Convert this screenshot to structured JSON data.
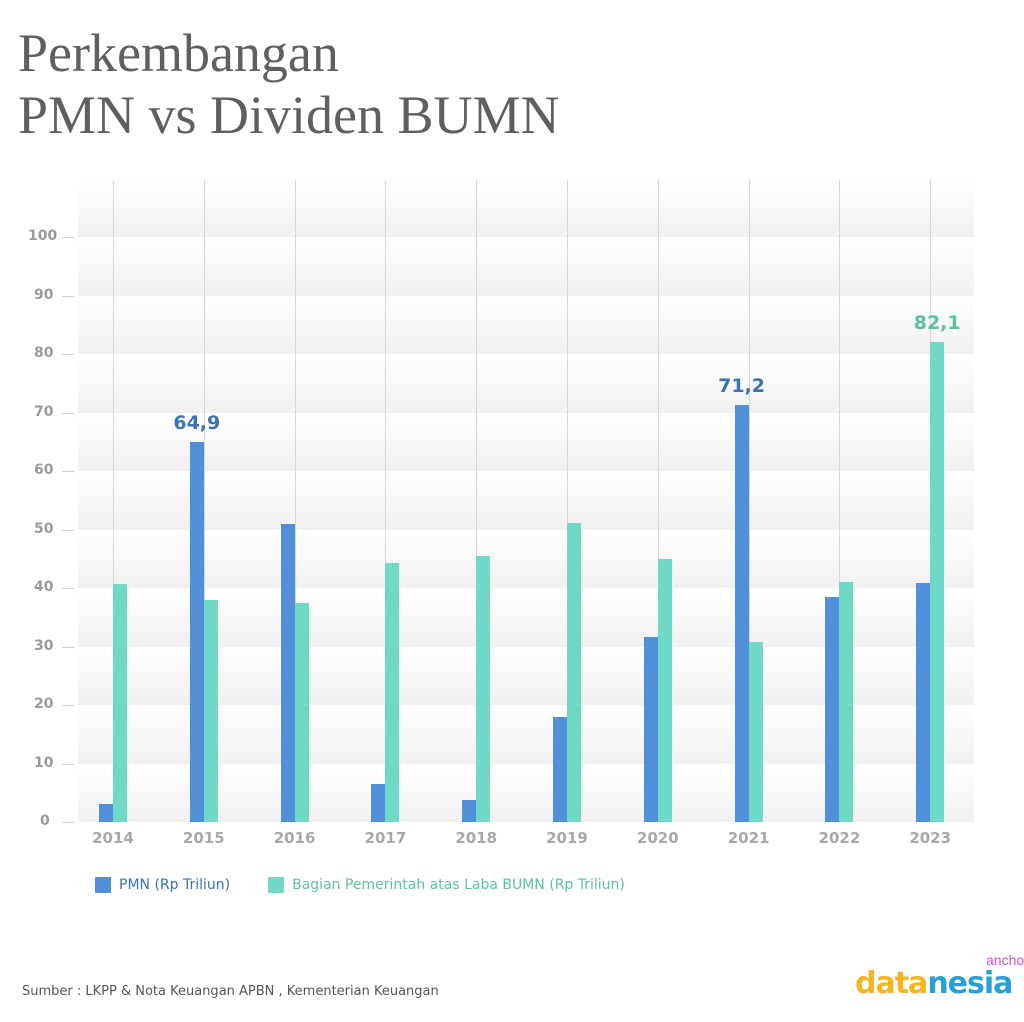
{
  "title": {
    "line1": "Perkembangan",
    "line2": "PMN vs Dividen BUMN"
  },
  "colors": {
    "pmn": "#528fdb",
    "dividen": "#6fd8c6",
    "pmn_label": "#3a72b8",
    "dividen_label": "#5cbfa9"
  },
  "chart_data": {
    "type": "bar",
    "title": "Perkembangan PMN vs Dividen BUMN",
    "xlabel": "",
    "ylabel": "",
    "ylim": [
      0,
      100
    ],
    "yticks": [
      0,
      10,
      20,
      30,
      40,
      50,
      60,
      70,
      80,
      90,
      100
    ],
    "grid": "horizontal bands + vertical lines",
    "legend_position": "bottom",
    "categories": [
      "2014",
      "2015",
      "2016",
      "2017",
      "2018",
      "2019",
      "2020",
      "2021",
      "2022",
      "2023"
    ],
    "series": [
      {
        "name": "PMN (Rp Triliun)",
        "values": [
          3.1,
          64.9,
          51.0,
          6.5,
          3.7,
          18.0,
          31.6,
          71.2,
          38.5,
          40.8
        ]
      },
      {
        "name": "Bagian Pemerintah atas Laba BUMN  (Rp Triliun)",
        "values": [
          40.7,
          38.0,
          37.5,
          44.3,
          45.5,
          51.1,
          45.0,
          30.8,
          41.0,
          82.1
        ]
      }
    ],
    "annotations": [
      {
        "series": "PMN (Rp Triliun)",
        "category": "2015",
        "text": "64,9"
      },
      {
        "series": "PMN (Rp Triliun)",
        "category": "2021",
        "text": "71,2"
      },
      {
        "series": "Bagian Pemerintah atas Laba BUMN  (Rp Triliun)",
        "category": "2023",
        "text": "82,1"
      }
    ]
  },
  "legend": {
    "pmn": "PMN (Rp Triliun)",
    "dividen": "Bagian Pemerintah atas Laba BUMN  (Rp Triliun)"
  },
  "footer": {
    "source": "Sumber : LKPP & Nota Keuangan APBN , Kementerian Keuangan",
    "logo_part1": "data",
    "logo_part2": "nesia",
    "anchor_text": "ancho"
  }
}
